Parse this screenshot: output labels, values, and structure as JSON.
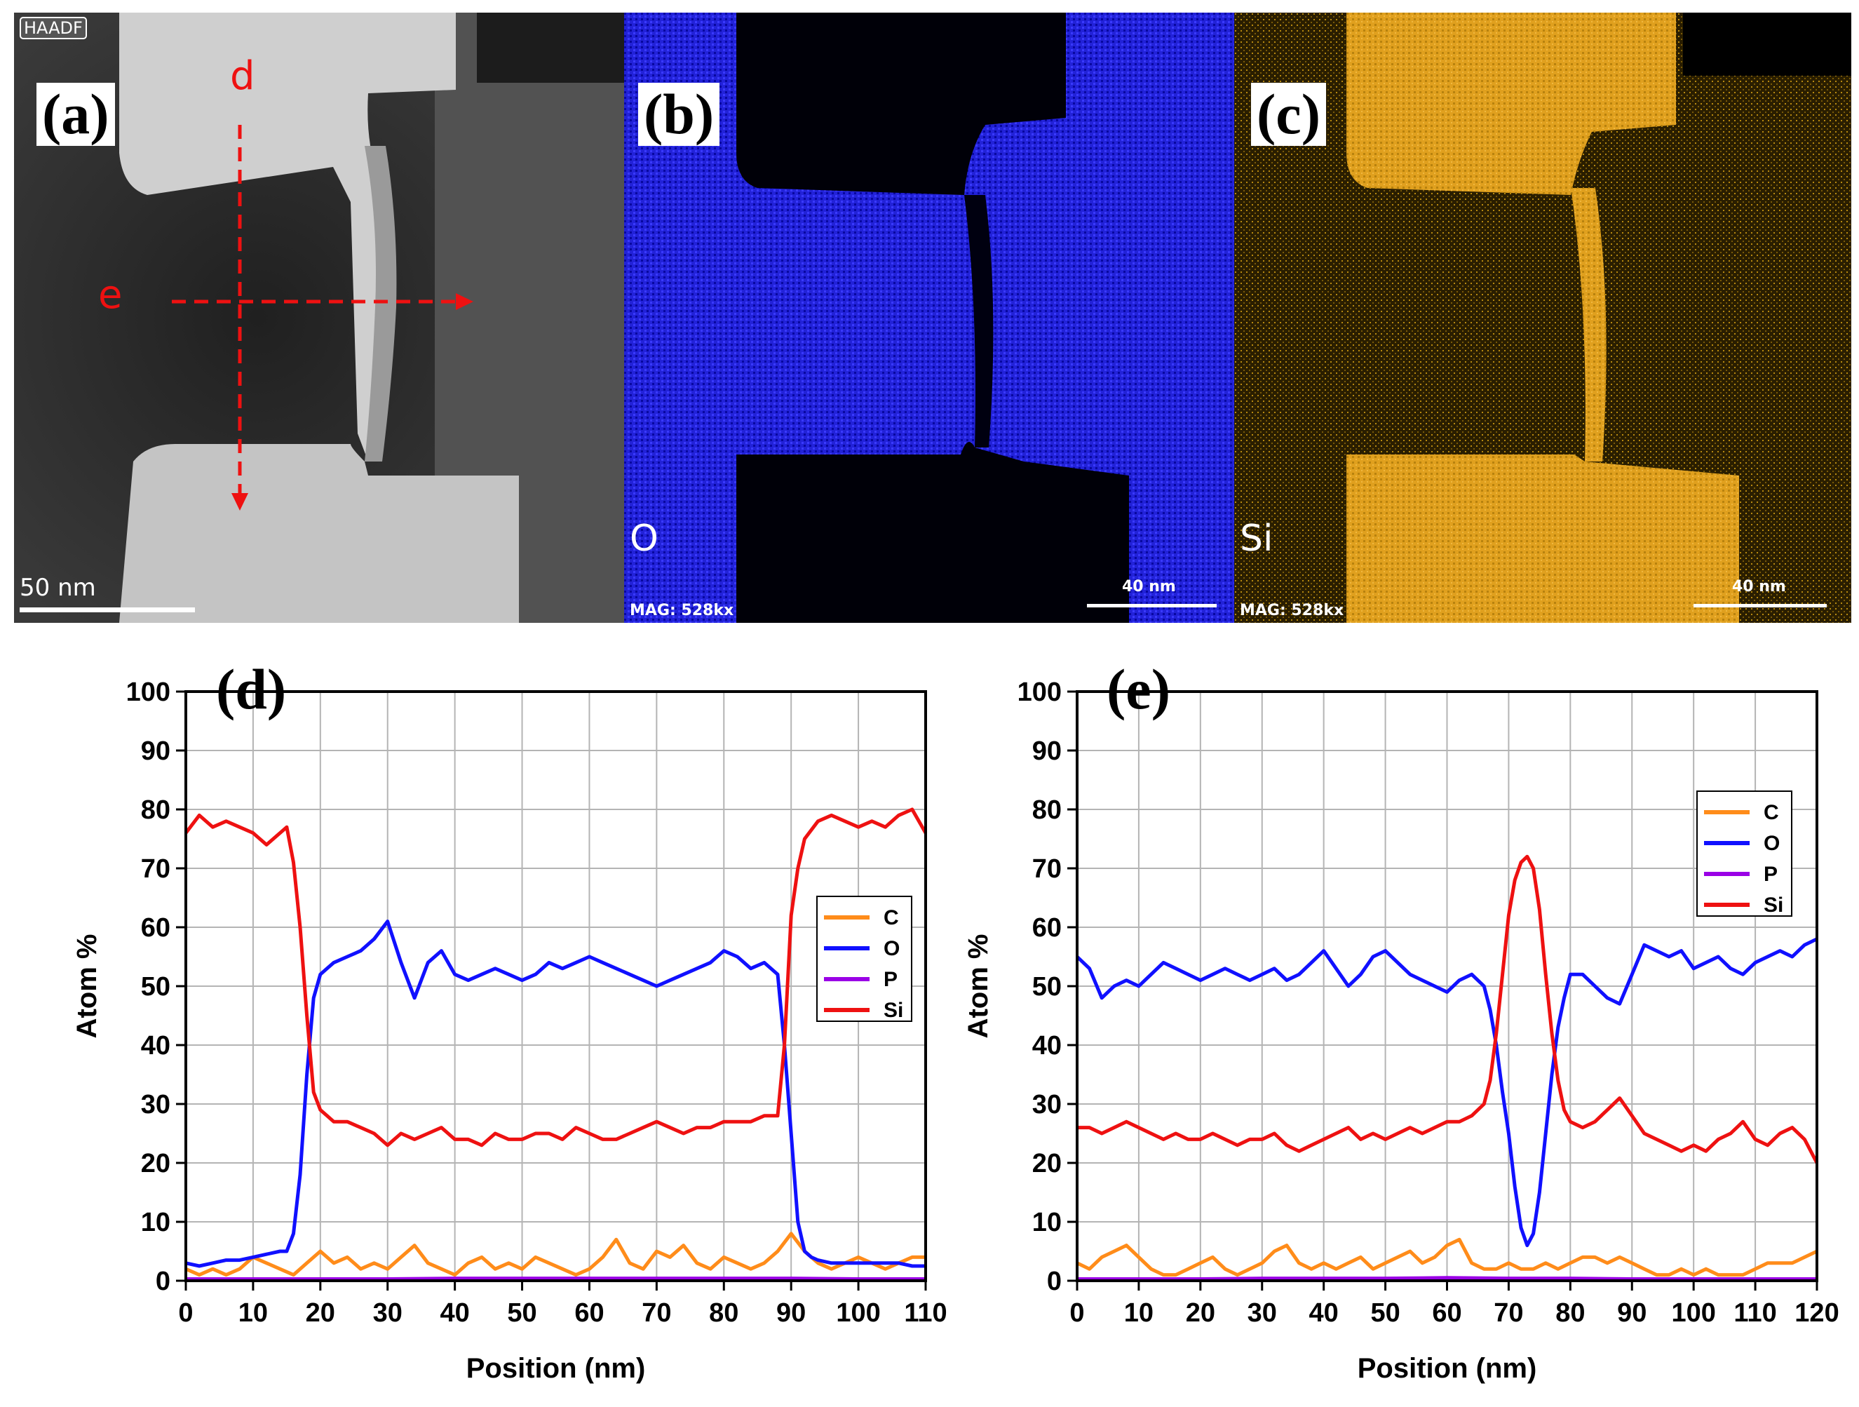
{
  "images": {
    "a": {
      "letter": "(a)",
      "detector": "HAADF",
      "scale_text": "50 nm",
      "line_d": "d",
      "line_e": "e"
    },
    "b": {
      "letter": "(b)",
      "element": "O",
      "mag": "MAG: 528kx",
      "scale_text": "40 nm",
      "color": "#1f1fd6"
    },
    "c": {
      "letter": "(c)",
      "element": "Si",
      "mag": "MAG: 528kx",
      "scale_text": "40 nm",
      "color": "#e0a01e"
    }
  },
  "colors": {
    "C": "#ff8c1a",
    "O": "#1010ff",
    "P": "#9a00e6",
    "Si": "#ee1111",
    "arrow": "#ee1111"
  },
  "chart_data": [
    {
      "panel": "(d)",
      "type": "line",
      "xlabel": "Position (nm)",
      "ylabel": "Atom %",
      "xlim": [
        0,
        110
      ],
      "ylim": [
        0,
        100
      ],
      "xticks": [
        "0",
        "10",
        "20",
        "30",
        "40",
        "50",
        "60",
        "70",
        "80",
        "90",
        "100",
        "110"
      ],
      "yticks": [
        "0",
        "10",
        "20",
        "30",
        "40",
        "50",
        "60",
        "70",
        "80",
        "90",
        "100"
      ],
      "legend_position": "right-middle",
      "series": [
        {
          "name": "C",
          "x": [
            0,
            2,
            4,
            6,
            8,
            10,
            12,
            14,
            16,
            18,
            20,
            22,
            24,
            26,
            28,
            30,
            32,
            34,
            36,
            38,
            40,
            42,
            44,
            46,
            48,
            50,
            52,
            54,
            56,
            58,
            60,
            62,
            64,
            66,
            68,
            70,
            72,
            74,
            76,
            78,
            80,
            82,
            84,
            86,
            88,
            90,
            92,
            94,
            96,
            98,
            100,
            102,
            104,
            106,
            108,
            110
          ],
          "y": [
            2,
            1,
            2,
            1,
            2,
            4,
            3,
            2,
            1,
            3,
            5,
            3,
            4,
            2,
            3,
            2,
            4,
            6,
            3,
            2,
            1,
            3,
            4,
            2,
            3,
            2,
            4,
            3,
            2,
            1,
            2,
            4,
            7,
            3,
            2,
            5,
            4,
            6,
            3,
            2,
            4,
            3,
            2,
            3,
            5,
            8,
            5,
            3,
            2,
            3,
            4,
            3,
            2,
            3,
            4,
            4
          ]
        },
        {
          "name": "O",
          "x": [
            0,
            2,
            4,
            6,
            8,
            10,
            12,
            14,
            15,
            16,
            17,
            18,
            19,
            20,
            21,
            22,
            24,
            26,
            28,
            30,
            32,
            34,
            36,
            38,
            40,
            42,
            44,
            46,
            48,
            50,
            52,
            54,
            56,
            58,
            60,
            62,
            64,
            66,
            68,
            70,
            72,
            74,
            76,
            78,
            80,
            82,
            84,
            86,
            88,
            89,
            90,
            91,
            92,
            93,
            94,
            96,
            98,
            100,
            102,
            104,
            106,
            108,
            110
          ],
          "y": [
            3,
            2.5,
            3,
            3.5,
            3.5,
            4,
            4.5,
            5,
            5,
            8,
            18,
            35,
            48,
            52,
            53,
            54,
            55,
            56,
            58,
            61,
            54,
            48,
            54,
            56,
            52,
            51,
            52,
            53,
            52,
            51,
            52,
            54,
            53,
            54,
            55,
            54,
            53,
            52,
            51,
            50,
            51,
            52,
            53,
            54,
            56,
            55,
            53,
            54,
            52,
            40,
            25,
            10,
            5,
            4,
            3.5,
            3,
            3,
            3,
            3,
            3,
            3,
            2.5,
            2.5
          ]
        },
        {
          "name": "P",
          "x": [
            0,
            10,
            20,
            30,
            40,
            50,
            60,
            70,
            80,
            90,
            100,
            110
          ],
          "y": [
            0.3,
            0.3,
            0.3,
            0.3,
            0.4,
            0.4,
            0.4,
            0.4,
            0.4,
            0.4,
            0.3,
            0.3
          ]
        },
        {
          "name": "Si",
          "x": [
            0,
            2,
            4,
            6,
            8,
            10,
            12,
            14,
            15,
            16,
            17,
            18,
            19,
            20,
            21,
            22,
            24,
            26,
            28,
            30,
            32,
            34,
            36,
            38,
            40,
            42,
            44,
            46,
            48,
            50,
            52,
            54,
            56,
            58,
            60,
            62,
            64,
            66,
            68,
            70,
            72,
            74,
            76,
            78,
            80,
            82,
            84,
            86,
            88,
            89,
            90,
            91,
            92,
            94,
            96,
            98,
            100,
            102,
            104,
            106,
            108,
            110
          ],
          "y": [
            76,
            79,
            77,
            78,
            77,
            76,
            74,
            76,
            77,
            71,
            60,
            45,
            32,
            29,
            28,
            27,
            27,
            26,
            25,
            23,
            25,
            24,
            25,
            26,
            24,
            24,
            23,
            25,
            24,
            24,
            25,
            25,
            24,
            26,
            25,
            24,
            24,
            25,
            26,
            27,
            26,
            25,
            26,
            26,
            27,
            27,
            27,
            28,
            28,
            40,
            62,
            70,
            75,
            78,
            79,
            78,
            77,
            78,
            77,
            79,
            80,
            76
          ]
        }
      ]
    },
    {
      "panel": "(e)",
      "type": "line",
      "xlabel": "Position (nm)",
      "ylabel": "Atom %",
      "xlim": [
        0,
        120
      ],
      "ylim": [
        0,
        100
      ],
      "xticks": [
        "0",
        "10",
        "20",
        "30",
        "40",
        "50",
        "60",
        "70",
        "80",
        "90",
        "100",
        "110",
        "120"
      ],
      "yticks": [
        "0",
        "10",
        "20",
        "30",
        "40",
        "50",
        "60",
        "70",
        "80",
        "90",
        "100"
      ],
      "legend_position": "top-right",
      "series": [
        {
          "name": "C",
          "x": [
            0,
            2,
            4,
            6,
            8,
            10,
            12,
            14,
            16,
            18,
            20,
            22,
            24,
            26,
            28,
            30,
            32,
            34,
            36,
            38,
            40,
            42,
            44,
            46,
            48,
            50,
            52,
            54,
            56,
            58,
            60,
            62,
            64,
            66,
            68,
            70,
            72,
            74,
            76,
            78,
            80,
            82,
            84,
            86,
            88,
            90,
            92,
            94,
            96,
            98,
            100,
            102,
            104,
            106,
            108,
            110,
            112,
            114,
            116,
            118,
            120
          ],
          "y": [
            3,
            2,
            4,
            5,
            6,
            4,
            2,
            1,
            1,
            2,
            3,
            4,
            2,
            1,
            2,
            3,
            5,
            6,
            3,
            2,
            3,
            2,
            3,
            4,
            2,
            3,
            4,
            5,
            3,
            4,
            6,
            7,
            3,
            2,
            2,
            3,
            2,
            2,
            3,
            2,
            3,
            4,
            4,
            3,
            4,
            3,
            2,
            1,
            1,
            2,
            1,
            2,
            1,
            1,
            1,
            2,
            3,
            3,
            3,
            4,
            5
          ]
        },
        {
          "name": "O",
          "x": [
            0,
            2,
            4,
            6,
            8,
            10,
            12,
            14,
            16,
            18,
            20,
            22,
            24,
            26,
            28,
            30,
            32,
            34,
            36,
            38,
            40,
            42,
            44,
            46,
            48,
            50,
            52,
            54,
            56,
            58,
            60,
            62,
            64,
            66,
            67,
            68,
            69,
            70,
            71,
            72,
            73,
            74,
            75,
            76,
            77,
            78,
            79,
            80,
            82,
            84,
            86,
            88,
            90,
            92,
            94,
            96,
            98,
            100,
            102,
            104,
            106,
            108,
            110,
            112,
            114,
            116,
            118,
            120
          ],
          "y": [
            55,
            53,
            48,
            50,
            51,
            50,
            52,
            54,
            53,
            52,
            51,
            52,
            53,
            52,
            51,
            52,
            53,
            51,
            52,
            54,
            56,
            53,
            50,
            52,
            55,
            56,
            54,
            52,
            51,
            50,
            49,
            51,
            52,
            50,
            46,
            40,
            32,
            25,
            16,
            9,
            6,
            8,
            15,
            25,
            35,
            43,
            48,
            52,
            52,
            50,
            48,
            47,
            52,
            57,
            56,
            55,
            56,
            53,
            54,
            55,
            53,
            52,
            54,
            55,
            56,
            55,
            57,
            58
          ]
        },
        {
          "name": "P",
          "x": [
            0,
            10,
            20,
            30,
            40,
            50,
            60,
            70,
            80,
            90,
            100,
            110,
            120
          ],
          "y": [
            0.3,
            0.3,
            0.3,
            0.4,
            0.4,
            0.4,
            0.5,
            0.4,
            0.4,
            0.3,
            0.3,
            0.3,
            0.3
          ]
        },
        {
          "name": "Si",
          "x": [
            0,
            2,
            4,
            6,
            8,
            10,
            12,
            14,
            16,
            18,
            20,
            22,
            24,
            26,
            28,
            30,
            32,
            34,
            36,
            38,
            40,
            42,
            44,
            46,
            48,
            50,
            52,
            54,
            56,
            58,
            60,
            62,
            64,
            66,
            67,
            68,
            69,
            70,
            71,
            72,
            73,
            74,
            75,
            76,
            77,
            78,
            79,
            80,
            82,
            84,
            86,
            88,
            90,
            92,
            94,
            96,
            98,
            100,
            102,
            104,
            106,
            108,
            110,
            112,
            114,
            116,
            118,
            120
          ],
          "y": [
            26,
            26,
            25,
            26,
            27,
            26,
            25,
            24,
            25,
            24,
            24,
            25,
            24,
            23,
            24,
            24,
            25,
            23,
            22,
            23,
            24,
            25,
            26,
            24,
            25,
            24,
            25,
            26,
            25,
            26,
            27,
            27,
            28,
            30,
            34,
            42,
            52,
            62,
            68,
            71,
            72,
            70,
            63,
            52,
            42,
            34,
            29,
            27,
            26,
            27,
            29,
            31,
            28,
            25,
            24,
            23,
            22,
            23,
            22,
            24,
            25,
            27,
            24,
            23,
            25,
            26,
            24,
            20
          ]
        }
      ]
    }
  ]
}
